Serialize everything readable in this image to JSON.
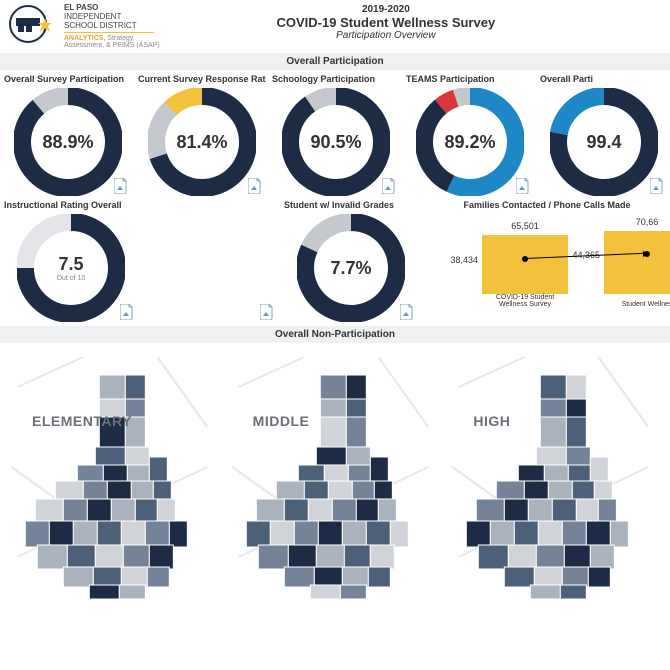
{
  "header": {
    "district_line1": "EL PASO",
    "district_line2": "INDEPENDENT",
    "district_line3": "SCHOOL DISTRICT",
    "dept_highlight": "ANALYTICS,",
    "dept_rest": " Strategy,",
    "dept_line2": "Assessment, & PEIMS (ASAP)",
    "year": "2019-2020",
    "title": "COVID-19 Student Wellness Survey",
    "subtitle": "Participation Overview"
  },
  "section_labels": {
    "participation": "Overall Participation",
    "nonparticipation": "Overall Non-Participation"
  },
  "colors": {
    "navy": "#1d2c44",
    "grey": "#c5c9ce",
    "light_grey": "#e3e5e8",
    "yellow": "#f3c23d",
    "blue": "#1e88c7",
    "red": "#d9363e",
    "bar_fill": "#f3c23d",
    "text_grey": "#6a6f78",
    "map_shades": [
      "#d0d4d9",
      "#a9b2bd",
      "#748397",
      "#4d607a",
      "#1d2c44"
    ]
  },
  "donuts_row1": [
    {
      "title": "Overall Survey Participation",
      "value": "88.9%",
      "segments": [
        {
          "color_key": "navy",
          "pct": 88.9
        },
        {
          "color_key": "grey",
          "pct": 11.1
        }
      ]
    },
    {
      "title": "Current Survey Response Rate",
      "value": "81.4%",
      "segments": [
        {
          "color_key": "navy",
          "pct": 70
        },
        {
          "color_key": "grey",
          "pct": 18
        },
        {
          "color_key": "yellow",
          "pct": 12
        }
      ]
    },
    {
      "title": "Schoology Participation",
      "value": "90.5%",
      "segments": [
        {
          "color_key": "navy",
          "pct": 90.5
        },
        {
          "color_key": "grey",
          "pct": 9.5
        }
      ]
    },
    {
      "title": "TEAMS Participation",
      "value": "89.2%",
      "segments": [
        {
          "color_key": "blue",
          "pct": 57
        },
        {
          "color_key": "navy",
          "pct": 32
        },
        {
          "color_key": "red",
          "pct": 6
        },
        {
          "color_key": "grey",
          "pct": 5
        }
      ]
    },
    {
      "title": "Overall Parti",
      "value": "99.4",
      "segments": [
        {
          "color_key": "navy",
          "pct": 78
        },
        {
          "color_key": "blue",
          "pct": 22
        }
      ]
    }
  ],
  "donuts_row2": {
    "rating": {
      "title": "Instructional Rating Overall",
      "value": "7.5",
      "sub": "Out of 10",
      "segments": [
        {
          "color_key": "navy",
          "pct": 75
        },
        {
          "color_key": "light_grey",
          "pct": 25
        }
      ]
    },
    "invalid": {
      "title": "Student w/ Invalid Grades",
      "value": "7.7%",
      "segments": [
        {
          "color_key": "navy",
          "pct": 82
        },
        {
          "color_key": "grey",
          "pct": 18
        }
      ]
    }
  },
  "bar_chart": {
    "title": "Families Contacted / Phone Calls Made",
    "bars": [
      {
        "top_label": "65,501",
        "side_label": "38,434",
        "x_label": "COVID-19 Student Wellness Survey",
        "height_pct": 78,
        "side_pct": 46
      },
      {
        "top_label": "70,66",
        "side_label": "44,365",
        "x_label": "Student Wellnes",
        "height_pct": 84,
        "side_pct": 53
      }
    ]
  },
  "maps": [
    {
      "label": "ELEMENTARY"
    },
    {
      "label": "MIDDLE"
    },
    {
      "label": "HIGH"
    }
  ]
}
